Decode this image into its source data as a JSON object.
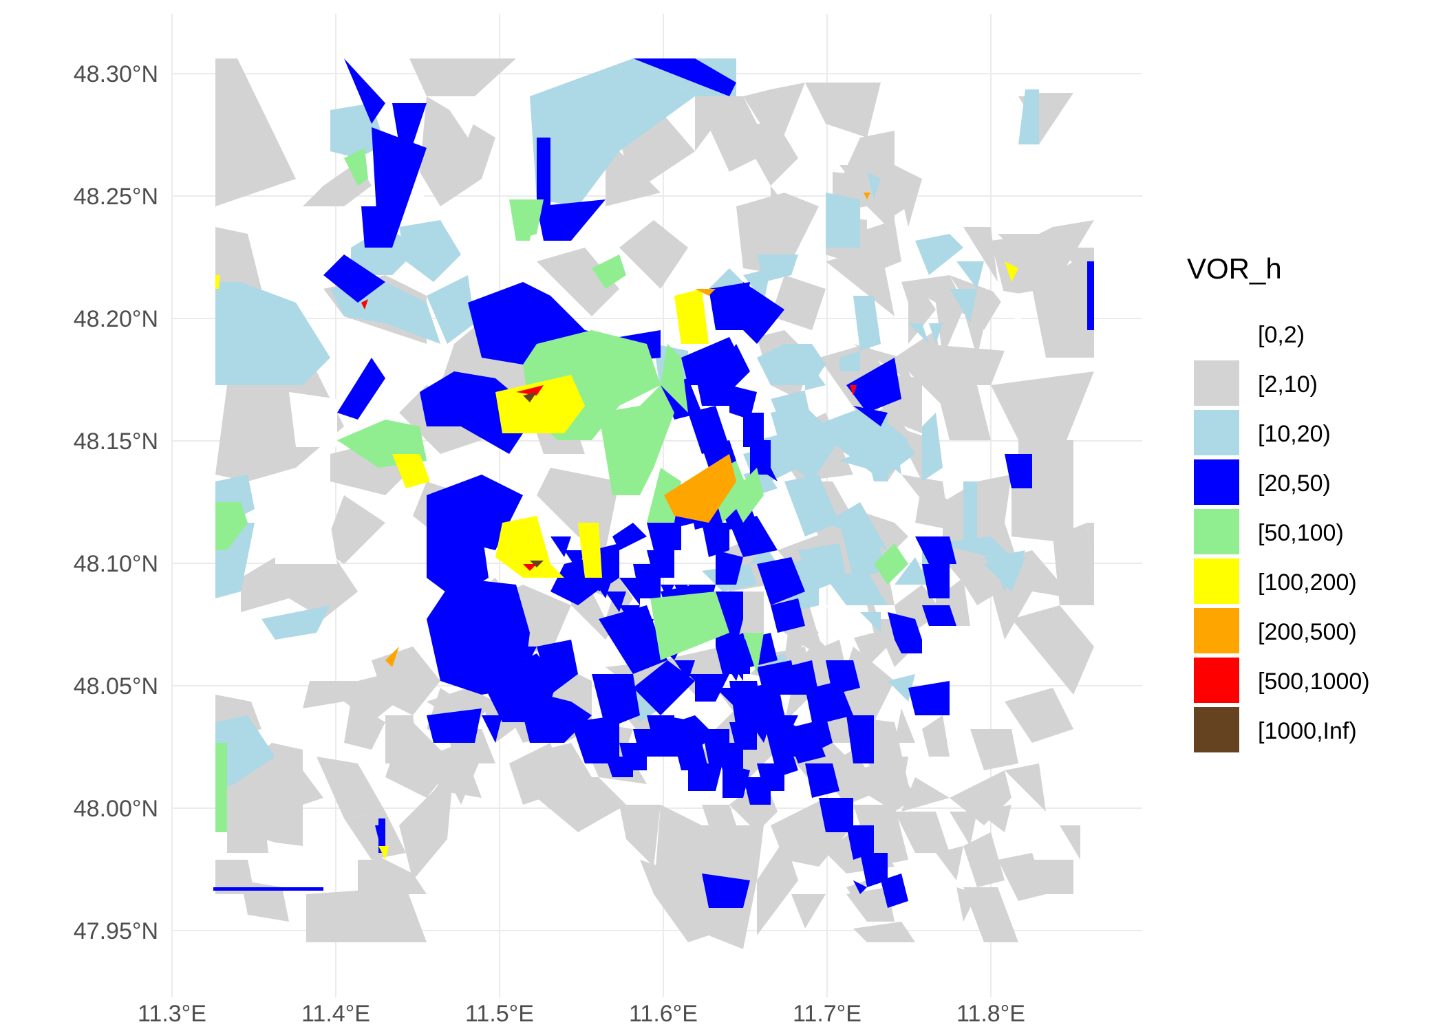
{
  "chart_data": {
    "type": "map",
    "title": "",
    "xlabel": "",
    "ylabel": "",
    "xlim": [
      11.3,
      11.85
    ],
    "ylim": [
      47.95,
      48.3
    ],
    "x_ticks": [
      "11.3°E",
      "11.4°E",
      "11.5°E",
      "11.6°E",
      "11.7°E",
      "11.8°E"
    ],
    "y_ticks": [
      "48.30°N",
      "48.25°N",
      "48.20°N",
      "48.15°N",
      "48.10°N",
      "48.05°N",
      "48.00°N",
      "47.95°N"
    ],
    "grid": true,
    "legend": {
      "title": "VOR_h",
      "placement": "right",
      "entries": [
        {
          "label": "[0,2)",
          "color": "#ffffff"
        },
        {
          "label": "[2,10)",
          "color": "#d3d3d3"
        },
        {
          "label": "[10,20)",
          "color": "#add8e6"
        },
        {
          "label": "[20,50)",
          "color": "#0000ff"
        },
        {
          "label": "[50,100)",
          "color": "#90ee90"
        },
        {
          "label": "[100,200)",
          "color": "#ffff00"
        },
        {
          "label": "[200,500)",
          "color": "#ffa500"
        },
        {
          "label": "[500,1000)",
          "color": "#ff0000"
        },
        {
          "label": "[1000,Inf)",
          "color": "#654321"
        }
      ]
    }
  }
}
